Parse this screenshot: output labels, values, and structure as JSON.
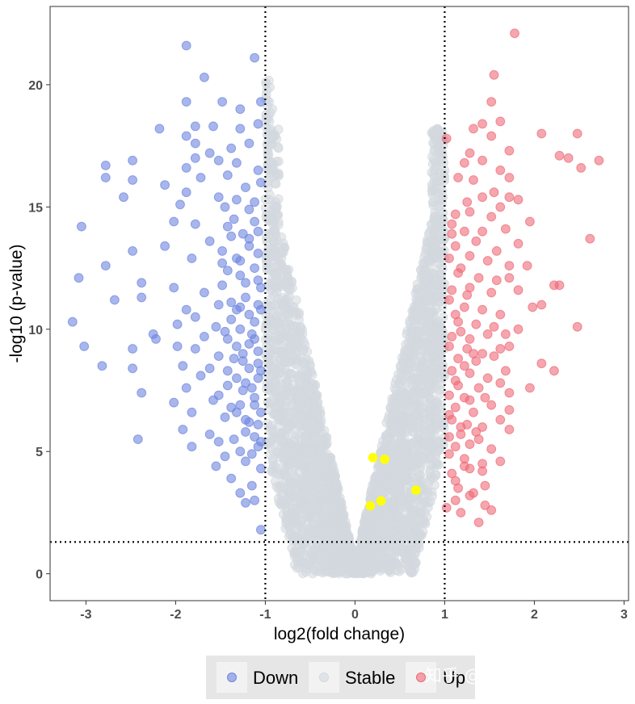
{
  "chart_data": {
    "type": "scatter",
    "title": "",
    "xlabel": "log2(fold change)",
    "ylabel": "-log10 (p-value)",
    "xlim": [
      -3.4,
      3.05
    ],
    "ylim": [
      -1.1,
      23.2
    ],
    "xticks": [
      -3,
      -2,
      -1,
      0,
      1,
      2,
      3
    ],
    "yticks": [
      0,
      5,
      10,
      15,
      20
    ],
    "xtick_labels": [
      "-3",
      "-2",
      "-1",
      "0",
      "1",
      "2",
      "3"
    ],
    "ytick_labels": [
      "0",
      "5",
      "10",
      "15",
      "20"
    ],
    "grid": false,
    "thresholds": {
      "log2fc": [
        -1,
        1
      ],
      "neg_log10_p": 1.3
    },
    "legend": {
      "position": "bottom",
      "entries": [
        {
          "key": "down",
          "label": "Down"
        },
        {
          "key": "stable",
          "label": "Stable"
        },
        {
          "key": "up",
          "label": "Up"
        }
      ]
    },
    "colors": {
      "down": "#6e86e0",
      "stable": "#d3d9df",
      "up": "#ee6b78",
      "highlight": "#ffff00",
      "axis": "#333333",
      "legend_bg": "#e6e6e6"
    },
    "series": [
      {
        "name": "Down",
        "points": [
          [
            -1.88,
            21.6
          ],
          [
            -1.68,
            20.3
          ],
          [
            -1.12,
            21.1
          ],
          [
            -1.88,
            19.3
          ],
          [
            -1.48,
            19.3
          ],
          [
            -1.28,
            19.0
          ],
          [
            -1.05,
            19.3
          ],
          [
            -2.18,
            18.2
          ],
          [
            -1.78,
            18.3
          ],
          [
            -1.58,
            18.3
          ],
          [
            -1.28,
            18.2
          ],
          [
            -1.08,
            18.4
          ],
          [
            -1.88,
            17.9
          ],
          [
            -1.78,
            17.6
          ],
          [
            -1.62,
            17.2
          ],
          [
            -1.38,
            17.4
          ],
          [
            -1.18,
            17.6
          ],
          [
            -2.78,
            16.7
          ],
          [
            -2.48,
            16.9
          ],
          [
            -1.88,
            16.6
          ],
          [
            -1.78,
            17.0
          ],
          [
            -1.52,
            16.9
          ],
          [
            -1.32,
            16.8
          ],
          [
            -1.08,
            16.5
          ],
          [
            -2.78,
            16.2
          ],
          [
            -2.48,
            16.1
          ],
          [
            -2.12,
            15.9
          ],
          [
            -1.72,
            16.2
          ],
          [
            -1.42,
            16.3
          ],
          [
            -1.22,
            15.8
          ],
          [
            -1.05,
            16.0
          ],
          [
            -2.58,
            15.4
          ],
          [
            -1.88,
            15.6
          ],
          [
            -1.52,
            15.4
          ],
          [
            -1.32,
            15.3
          ],
          [
            -1.12,
            15.2
          ],
          [
            -1.95,
            15.1
          ],
          [
            -1.45,
            15.0
          ],
          [
            -3.05,
            14.2
          ],
          [
            -2.02,
            14.4
          ],
          [
            -1.78,
            14.3
          ],
          [
            -1.42,
            14.2
          ],
          [
            -1.12,
            14.4
          ],
          [
            -2.48,
            13.2
          ],
          [
            -2.12,
            13.4
          ],
          [
            -1.62,
            13.6
          ],
          [
            -1.38,
            13.8
          ],
          [
            -1.18,
            13.7
          ],
          [
            -1.08,
            13.1
          ],
          [
            -2.78,
            12.6
          ],
          [
            -1.82,
            12.9
          ],
          [
            -1.48,
            12.7
          ],
          [
            -1.28,
            12.8
          ],
          [
            -1.12,
            12.5
          ],
          [
            -3.08,
            12.1
          ],
          [
            -2.38,
            11.9
          ],
          [
            -2.02,
            11.7
          ],
          [
            -1.68,
            11.5
          ],
          [
            -1.48,
            11.8
          ],
          [
            -1.22,
            11.9
          ],
          [
            -1.05,
            11.7
          ],
          [
            -2.68,
            11.2
          ],
          [
            -2.38,
            11.3
          ],
          [
            -1.88,
            10.8
          ],
          [
            -1.52,
            11.0
          ],
          [
            -1.32,
            10.8
          ],
          [
            -1.08,
            11.0
          ],
          [
            -1.78,
            10.5
          ],
          [
            -1.38,
            10.4
          ],
          [
            -1.18,
            10.6
          ],
          [
            -3.15,
            10.3
          ],
          [
            -1.98,
            10.2
          ],
          [
            -1.55,
            10.1
          ],
          [
            -1.28,
            10.0
          ],
          [
            -2.25,
            9.8
          ],
          [
            -1.68,
            9.7
          ],
          [
            -1.42,
            9.6
          ],
          [
            -1.12,
            9.6
          ],
          [
            -3.02,
            9.3
          ],
          [
            -2.48,
            9.2
          ],
          [
            -1.98,
            9.3
          ],
          [
            -1.78,
            9.2
          ],
          [
            -1.32,
            9.3
          ],
          [
            -1.08,
            9.1
          ],
          [
            -2.22,
            9.6
          ],
          [
            -1.52,
            8.9
          ],
          [
            -1.25,
            8.7
          ],
          [
            -2.82,
            8.5
          ],
          [
            -1.92,
            8.5
          ],
          [
            -1.62,
            8.4
          ],
          [
            -1.42,
            8.3
          ],
          [
            -1.18,
            8.4
          ],
          [
            -2.48,
            8.4
          ],
          [
            -1.72,
            8.1
          ],
          [
            -1.32,
            8.0
          ],
          [
            -1.08,
            8.0
          ],
          [
            -2.38,
            7.4
          ],
          [
            -1.88,
            7.6
          ],
          [
            -1.52,
            7.3
          ],
          [
            -1.25,
            7.5
          ],
          [
            -2.02,
            7.0
          ],
          [
            -1.58,
            7.1
          ],
          [
            -1.38,
            6.8
          ],
          [
            -1.12,
            6.9
          ],
          [
            -1.82,
            6.6
          ],
          [
            -1.45,
            6.4
          ],
          [
            -1.22,
            6.3
          ],
          [
            -1.92,
            5.9
          ],
          [
            -1.62,
            5.7
          ],
          [
            -1.35,
            5.5
          ],
          [
            -1.12,
            5.6
          ],
          [
            -2.42,
            5.5
          ],
          [
            -1.82,
            5.2
          ],
          [
            -1.52,
            5.4
          ],
          [
            -1.28,
            5.0
          ],
          [
            -1.08,
            5.2
          ],
          [
            -1.45,
            4.8
          ],
          [
            -1.22,
            4.6
          ],
          [
            -1.55,
            4.4
          ],
          [
            -1.05,
            4.3
          ],
          [
            -1.38,
            3.9
          ],
          [
            -1.15,
            3.6
          ],
          [
            -1.28,
            3.3
          ],
          [
            -1.12,
            3.0
          ],
          [
            -1.22,
            2.9
          ],
          [
            -1.05,
            1.8
          ],
          [
            -1.18,
            13.4
          ],
          [
            -1.28,
            12.2
          ],
          [
            -1.42,
            12.4
          ],
          [
            -1.08,
            12.0
          ],
          [
            -1.22,
            11.3
          ],
          [
            -1.38,
            11.1
          ],
          [
            -1.12,
            10.3
          ],
          [
            -1.28,
            10.9
          ],
          [
            -1.45,
            9.9
          ],
          [
            -1.18,
            9.4
          ],
          [
            -1.35,
            8.8
          ],
          [
            -1.08,
            8.6
          ],
          [
            -1.22,
            7.8
          ],
          [
            -1.42,
            7.7
          ],
          [
            -1.12,
            7.2
          ],
          [
            -1.32,
            6.6
          ],
          [
            -1.08,
            6.1
          ],
          [
            -1.22,
            5.8
          ],
          [
            -1.18,
            14.9
          ],
          [
            -1.35,
            14.5
          ],
          [
            -1.08,
            14.0
          ],
          [
            -1.25,
            13.9
          ],
          [
            -1.48,
            13.2
          ],
          [
            -1.32,
            12.9
          ],
          [
            -1.05,
            10.8
          ],
          [
            -1.15,
            9.8
          ],
          [
            -1.25,
            9.0
          ],
          [
            -1.05,
            8.3
          ],
          [
            -1.15,
            7.6
          ],
          [
            -1.28,
            6.9
          ],
          [
            -1.05,
            6.6
          ],
          [
            -1.18,
            6.2
          ],
          [
            -1.05,
            5.4
          ],
          [
            -1.15,
            4.9
          ]
        ]
      },
      {
        "name": "Up",
        "points": [
          [
            1.78,
            22.1
          ],
          [
            1.55,
            20.4
          ],
          [
            1.52,
            19.3
          ],
          [
            1.42,
            18.4
          ],
          [
            1.32,
            18.2
          ],
          [
            1.62,
            18.5
          ],
          [
            1.52,
            17.9
          ],
          [
            1.28,
            17.2
          ],
          [
            1.72,
            17.3
          ],
          [
            2.08,
            18.0
          ],
          [
            2.28,
            17.1
          ],
          [
            2.38,
            17.0
          ],
          [
            2.48,
            18.0
          ],
          [
            2.52,
            16.6
          ],
          [
            2.72,
            16.9
          ],
          [
            1.02,
            17.8
          ],
          [
            1.22,
            16.8
          ],
          [
            1.42,
            16.9
          ],
          [
            1.62,
            16.5
          ],
          [
            1.15,
            16.2
          ],
          [
            1.32,
            16.1
          ],
          [
            1.72,
            16.2
          ],
          [
            1.55,
            15.6
          ],
          [
            1.25,
            15.2
          ],
          [
            1.42,
            15.4
          ],
          [
            1.72,
            15.4
          ],
          [
            1.82,
            15.3
          ],
          [
            1.62,
            15.0
          ],
          [
            1.12,
            14.7
          ],
          [
            1.28,
            14.8
          ],
          [
            1.52,
            14.6
          ],
          [
            1.95,
            14.4
          ],
          [
            1.08,
            14.3
          ],
          [
            1.22,
            14.0
          ],
          [
            1.42,
            14.0
          ],
          [
            1.68,
            14.1
          ],
          [
            1.12,
            13.4
          ],
          [
            1.35,
            13.6
          ],
          [
            1.58,
            13.2
          ],
          [
            1.82,
            13.5
          ],
          [
            2.62,
            13.7
          ],
          [
            1.05,
            12.9
          ],
          [
            1.28,
            13.0
          ],
          [
            1.48,
            12.8
          ],
          [
            1.72,
            12.6
          ],
          [
            1.92,
            12.6
          ],
          [
            1.15,
            12.3
          ],
          [
            1.38,
            12.1
          ],
          [
            1.58,
            12.0
          ],
          [
            1.72,
            12.1
          ],
          [
            1.08,
            11.6
          ],
          [
            1.28,
            11.7
          ],
          [
            1.52,
            11.5
          ],
          [
            1.82,
            11.6
          ],
          [
            2.22,
            11.8
          ],
          [
            2.28,
            11.8
          ],
          [
            1.05,
            11.2
          ],
          [
            1.22,
            10.9
          ],
          [
            1.42,
            10.8
          ],
          [
            1.62,
            10.6
          ],
          [
            1.98,
            10.9
          ],
          [
            2.08,
            11.0
          ],
          [
            1.15,
            10.3
          ],
          [
            1.35,
            10.2
          ],
          [
            1.55,
            10.1
          ],
          [
            1.82,
            10.0
          ],
          [
            2.48,
            10.1
          ],
          [
            1.08,
            9.7
          ],
          [
            1.28,
            9.6
          ],
          [
            1.48,
            9.8
          ],
          [
            1.68,
            9.8
          ],
          [
            1.05,
            9.3
          ],
          [
            1.25,
            9.2
          ],
          [
            1.42,
            9.0
          ],
          [
            1.62,
            9.2
          ],
          [
            1.72,
            9.3
          ],
          [
            1.15,
            8.8
          ],
          [
            1.35,
            8.7
          ],
          [
            1.55,
            8.9
          ],
          [
            2.08,
            8.6
          ],
          [
            1.08,
            8.3
          ],
          [
            1.28,
            8.2
          ],
          [
            1.48,
            8.0
          ],
          [
            1.68,
            8.3
          ],
          [
            2.22,
            8.3
          ],
          [
            1.15,
            7.7
          ],
          [
            1.38,
            7.6
          ],
          [
            1.62,
            7.8
          ],
          [
            1.05,
            7.3
          ],
          [
            1.22,
            7.2
          ],
          [
            1.45,
            7.2
          ],
          [
            1.72,
            7.4
          ],
          [
            1.95,
            7.6
          ],
          [
            1.12,
            6.8
          ],
          [
            1.32,
            6.6
          ],
          [
            1.52,
            6.9
          ],
          [
            1.72,
            6.7
          ],
          [
            1.08,
            6.3
          ],
          [
            1.25,
            6.1
          ],
          [
            1.42,
            6.0
          ],
          [
            1.62,
            6.3
          ],
          [
            1.18,
            5.7
          ],
          [
            1.38,
            5.5
          ],
          [
            1.72,
            5.9
          ],
          [
            1.12,
            5.2
          ],
          [
            1.28,
            5.3
          ],
          [
            1.52,
            5.1
          ],
          [
            1.05,
            4.9
          ],
          [
            1.22,
            4.7
          ],
          [
            1.42,
            4.5
          ],
          [
            1.62,
            4.6
          ],
          [
            1.08,
            4.1
          ],
          [
            1.28,
            4.3
          ],
          [
            1.42,
            4.2
          ],
          [
            1.15,
            3.5
          ],
          [
            1.32,
            3.3
          ],
          [
            1.12,
            3.0
          ],
          [
            1.28,
            3.2
          ],
          [
            1.45,
            2.8
          ],
          [
            1.52,
            2.6
          ],
          [
            1.38,
            2.1
          ],
          [
            1.02,
            2.7
          ],
          [
            1.18,
            2.5
          ],
          [
            1.08,
            13.9
          ],
          [
            1.18,
            12.5
          ],
          [
            1.25,
            11.4
          ],
          [
            1.12,
            10.6
          ],
          [
            1.18,
            9.9
          ],
          [
            1.32,
            9.0
          ],
          [
            1.22,
            8.5
          ],
          [
            1.12,
            7.9
          ],
          [
            1.28,
            7.1
          ],
          [
            1.05,
            6.5
          ],
          [
            1.18,
            6.0
          ],
          [
            1.35,
            5.8
          ],
          [
            1.05,
            5.6
          ],
          [
            1.22,
            4.4
          ],
          [
            1.12,
            3.8
          ],
          [
            1.45,
            3.6
          ]
        ]
      },
      {
        "name": "Highlighted",
        "points": [
          [
            0.2,
            4.75
          ],
          [
            0.33,
            4.68
          ],
          [
            0.68,
            3.42
          ],
          [
            0.29,
            2.98
          ],
          [
            0.17,
            2.78
          ]
        ]
      }
    ],
    "stable_cloud": {
      "count": 3400,
      "x_range": [
        -1,
        1
      ],
      "description": "non-significant genes filling a V-shaped region between the fold-change cutoffs"
    }
  },
  "watermark": "知乎 @ivy日落跌进星河"
}
